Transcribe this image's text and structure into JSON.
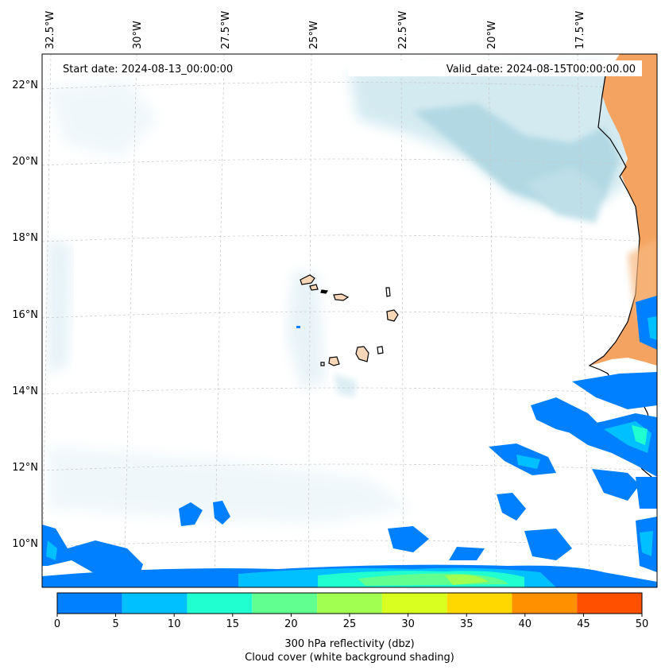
{
  "map": {
    "start_date": "Start date: 2024-08-13_00:00:00",
    "valid_date": "Valid_date: 2024-08-15T00:00:00.00",
    "lon_labels": [
      "32.5°W",
      "30°W",
      "27.5°W",
      "25°W",
      "22.5°W",
      "20°W",
      "17.5°W"
    ],
    "lat_labels": [
      "22°N",
      "20°N",
      "18°N",
      "16°N",
      "14°N",
      "12°N",
      "10°N"
    ],
    "land_color": "#f4a460",
    "cloud_color": "#a9d4e0",
    "gridlines": true
  },
  "colorbar": {
    "ticks": [
      "0",
      "5",
      "10",
      "15",
      "20",
      "25",
      "30",
      "35",
      "40",
      "45",
      "50"
    ],
    "colors": [
      "#0080ff",
      "#00c0ff",
      "#20ffd0",
      "#60ff90",
      "#a0ff50",
      "#d8ff20",
      "#ffd800",
      "#ff9000",
      "#ff5000"
    ],
    "label": "300 hPa reflectivity (dbz)",
    "sublabel": "Cloud cover (white background shading)"
  }
}
